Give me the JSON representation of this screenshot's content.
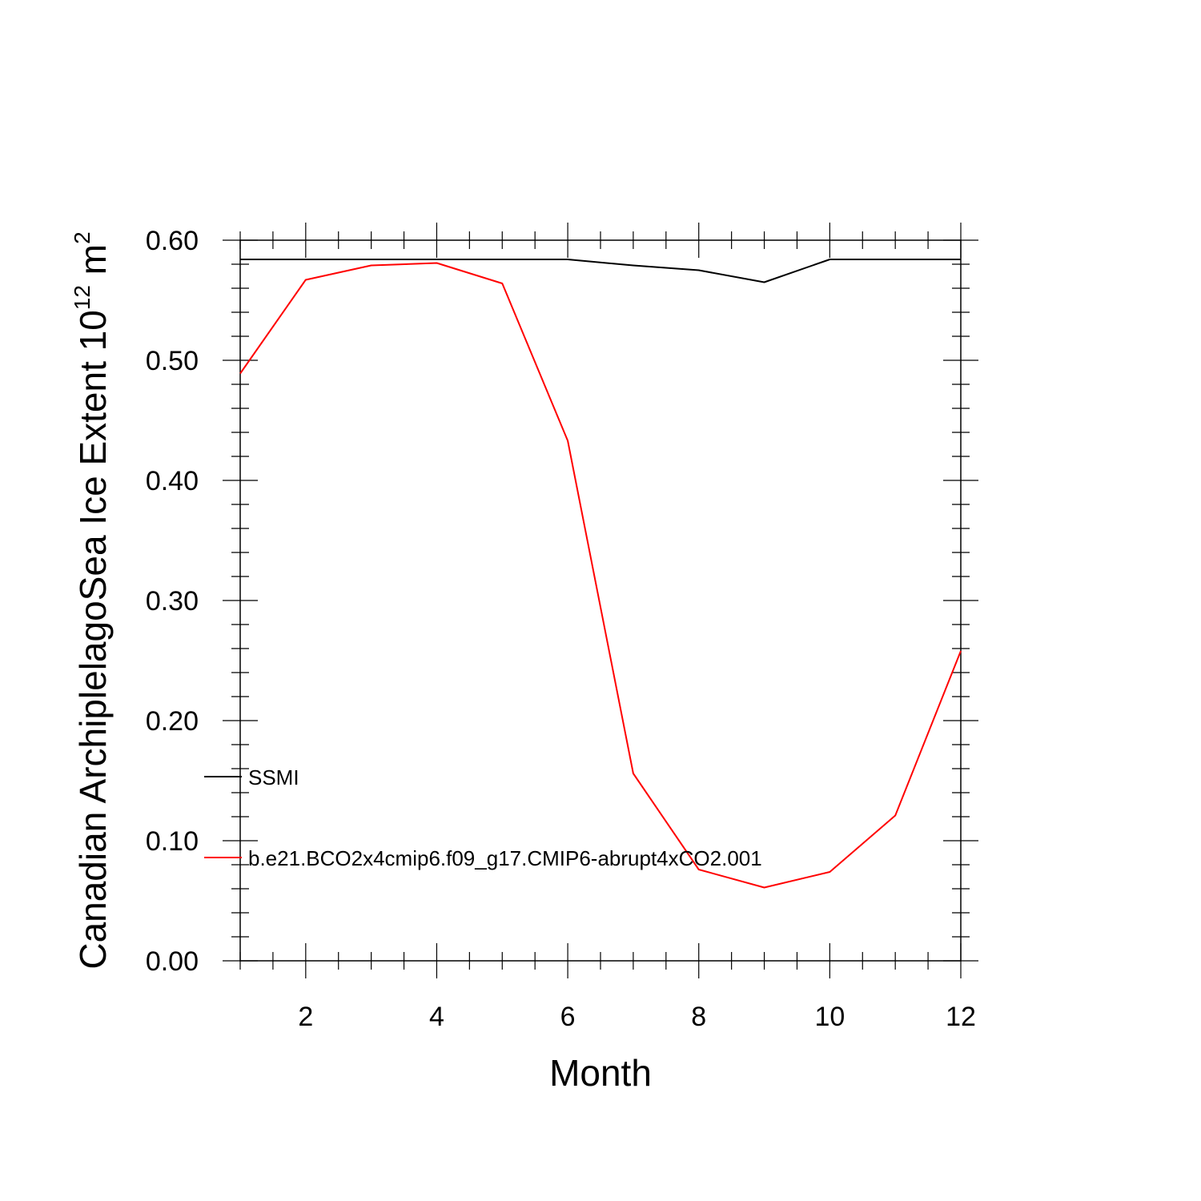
{
  "chart_data": {
    "type": "line",
    "title": "",
    "xlabel": "Month",
    "ylabel": {
      "prefix": "Canadian ArchiplelagoSea Ice Extent 10",
      "exp1": "12",
      "mid": " m",
      "exp2": "2"
    },
    "xlim": [
      1,
      12
    ],
    "ylim": [
      0.0,
      0.6
    ],
    "x_ticks": [
      2,
      4,
      6,
      8,
      10,
      12
    ],
    "x_tick_labels": [
      "2",
      "4",
      "6",
      "8",
      "10",
      "12"
    ],
    "y_ticks": [
      0.0,
      0.1,
      0.2,
      0.3,
      0.4,
      0.5,
      0.6
    ],
    "y_tick_labels": [
      "0.00",
      "0.10",
      "0.20",
      "0.30",
      "0.40",
      "0.50",
      "0.60"
    ],
    "grid": false,
    "legend_position": "inside-left",
    "x": [
      1,
      2,
      3,
      4,
      5,
      6,
      7,
      8,
      9,
      10,
      11,
      12
    ],
    "series": [
      {
        "name": "SSMI",
        "color": "#000000",
        "values": [
          0.584,
          0.584,
          0.584,
          0.584,
          0.584,
          0.584,
          0.579,
          0.575,
          0.565,
          0.584,
          0.584,
          0.584
        ]
      },
      {
        "name": "b.e21.BCO2x4cmip6.f09_g17.CMIP6-abrupt4xCO2.001",
        "color": "#ff0000",
        "values": [
          0.489,
          0.567,
          0.579,
          0.581,
          0.564,
          0.433,
          0.156,
          0.076,
          0.061,
          0.074,
          0.121,
          0.258
        ]
      }
    ]
  }
}
